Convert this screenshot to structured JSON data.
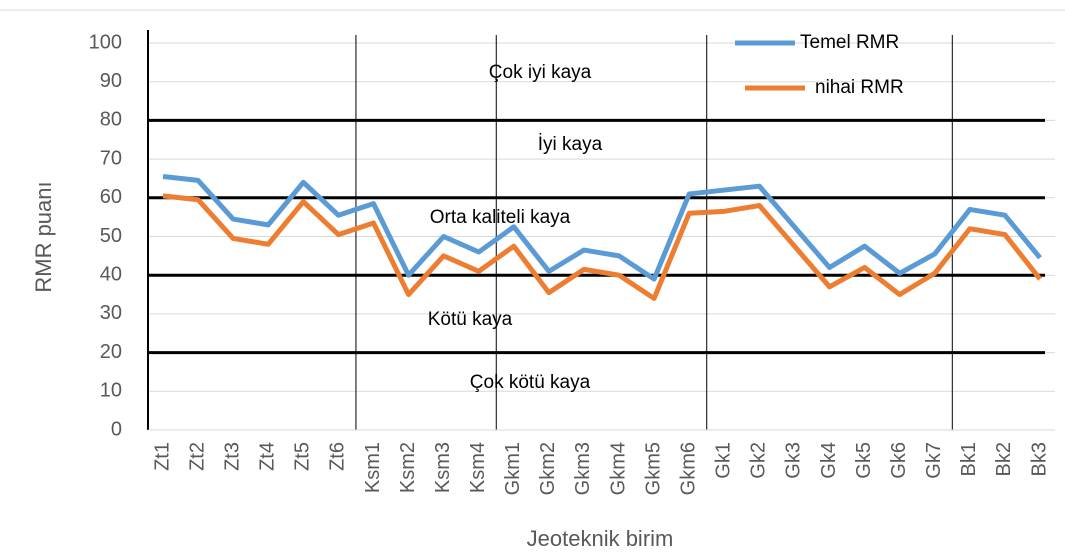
{
  "chart_data": {
    "type": "line",
    "x_label": "Jeoteknik birim",
    "y_label": "RMR puanı",
    "categories": [
      "Zt1",
      "Zt2",
      "Zt3",
      "Zt4",
      "Zt5",
      "Zt6",
      "Ksm1",
      "Ksm2",
      "Ksm3",
      "Ksm4",
      "Gkm1",
      "Gkm2",
      "Gkm3",
      "Gkm4",
      "Gkm5",
      "Gkm6",
      "Gk1",
      "Gk2",
      "Gk3",
      "Gk4",
      "Gk5",
      "Gk6",
      "Gk7",
      "Bk1",
      "Bk2",
      "Bk3"
    ],
    "series": [
      {
        "name": "Temel RMR",
        "color": "#5b9bd5",
        "values": [
          65.5,
          64.5,
          54.5,
          53,
          64,
          55.5,
          58.5,
          40,
          50,
          46,
          52.5,
          41,
          46.5,
          45,
          39,
          61,
          62,
          63,
          52.5,
          42,
          47.5,
          40.5,
          45.5,
          57,
          55.5,
          44.5
        ]
      },
      {
        "name": "nihai RMR",
        "color": "#ed7d31",
        "values": [
          60.5,
          59.5,
          49.5,
          48,
          59,
          50.5,
          53.5,
          35,
          45,
          41,
          47.5,
          35.5,
          41.5,
          40,
          34,
          56,
          56.5,
          58,
          47.5,
          37,
          42,
          35,
          40.5,
          52,
          50.5,
          39
        ]
      }
    ],
    "ylim": [
      0,
      100
    ],
    "yticks": [
      0,
      10,
      20,
      30,
      40,
      50,
      60,
      70,
      80,
      90,
      100
    ],
    "grid": true,
    "class_boundaries": [
      20,
      40,
      60,
      80
    ],
    "annotations": [
      "Çok iyi kaya",
      "İyi kaya",
      "Orta kaliteli kaya",
      "Kötü kaya",
      "Çok kötü kaya"
    ]
  }
}
